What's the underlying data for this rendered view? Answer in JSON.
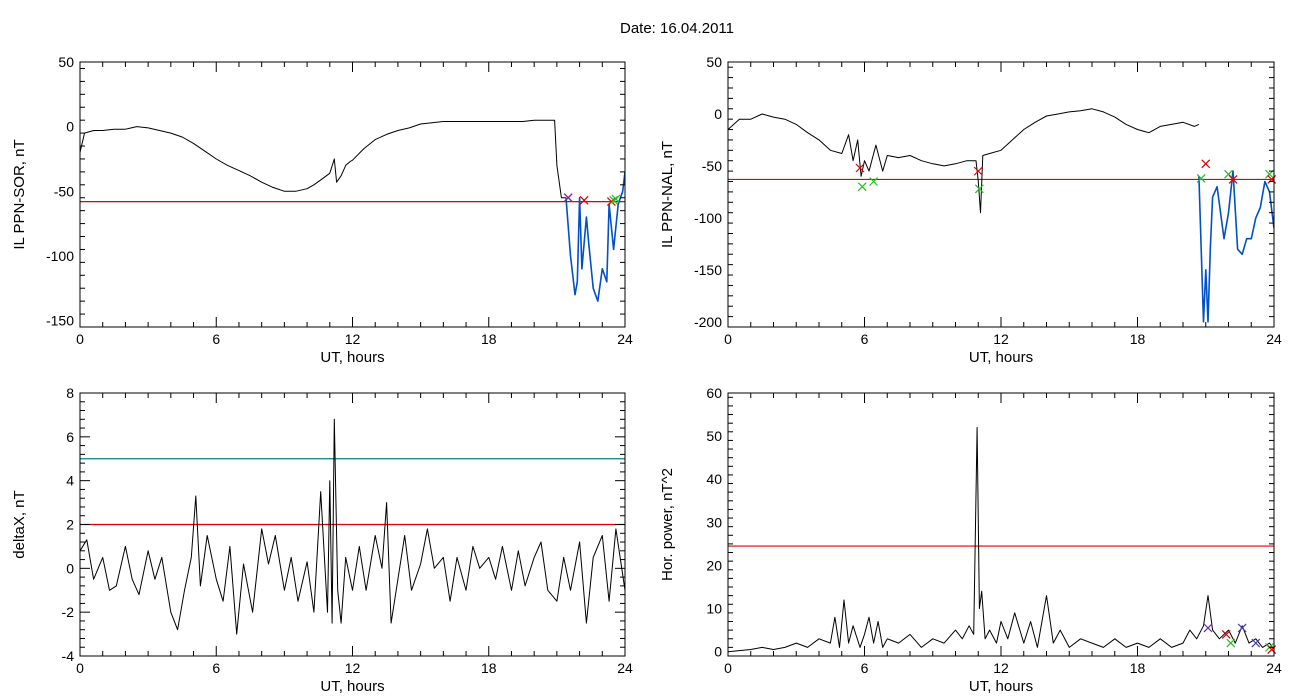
{
  "header": {
    "date_label": "Date:  16.04.2011"
  },
  "chart_data": [
    {
      "id": "p1",
      "type": "line",
      "title": "",
      "xlabel": "UT, hours",
      "ylabel": "IL PPN-SOR, nT",
      "xlim": [
        0,
        24
      ],
      "ylim": [
        -155,
        50
      ],
      "xticks": [
        0,
        6,
        12,
        18,
        24
      ],
      "yticks": [
        -150,
        -100,
        -50,
        0,
        50
      ],
      "thresholds": [
        {
          "y": -58,
          "color": "#e00000"
        }
      ],
      "series": [
        {
          "color": "#000000",
          "x": [
            0,
            0.2,
            0.6,
            1,
            1.5,
            2,
            2.5,
            3,
            3.5,
            4,
            4.5,
            5,
            5.5,
            6,
            6.5,
            7,
            7.5,
            8,
            8.5,
            9,
            9.5,
            10,
            10.3,
            10.7,
            11,
            11.2,
            11.3,
            11.5,
            11.7,
            11.9,
            12,
            12.5,
            13,
            13.5,
            14,
            14.5,
            15,
            15.5,
            16,
            16.5,
            17,
            17.5,
            18,
            18.5,
            19,
            19.5,
            20,
            20.5,
            20.9,
            21.0,
            21.2,
            21.4
          ],
          "y": [
            -20,
            -5,
            -3,
            -3,
            -2,
            -2,
            0,
            -1,
            -3,
            -5,
            -8,
            -13,
            -19,
            -25,
            -30,
            -34,
            -38,
            -43,
            -47,
            -50,
            -50,
            -48,
            -45,
            -40,
            -36,
            -25,
            -43,
            -38,
            -30,
            -27,
            -26,
            -17,
            -10,
            -6,
            -3,
            -1,
            2,
            3,
            4,
            4,
            4,
            4,
            4,
            4,
            4,
            4,
            5,
            5,
            5,
            -30,
            -55,
            -55
          ]
        },
        {
          "color": "#0050c8",
          "x": [
            21.4,
            21.6,
            21.8,
            21.9,
            22.0,
            22.1,
            22.3,
            22.4,
            22.6,
            22.8,
            23.0,
            23.2,
            23.3,
            23.5,
            23.7,
            23.9,
            24.0
          ],
          "y": [
            -55,
            -100,
            -130,
            -120,
            -55,
            -110,
            -70,
            -90,
            -125,
            -135,
            -110,
            -120,
            -60,
            -95,
            -60,
            -50,
            -35
          ]
        }
      ],
      "markers": [
        {
          "x": 21.5,
          "y": -55,
          "color": "#e00000"
        },
        {
          "x": 21.5,
          "y": -55,
          "color": "#7030a0"
        },
        {
          "x": 22.2,
          "y": -57,
          "color": "#e00000"
        },
        {
          "x": 23.4,
          "y": -58,
          "color": "#e00000"
        },
        {
          "x": 23.5,
          "y": -57,
          "color": "#20c020"
        },
        {
          "x": 23.6,
          "y": -56,
          "color": "#20c020"
        }
      ]
    },
    {
      "id": "p2",
      "type": "line",
      "title": "",
      "xlabel": "UT, hours",
      "ylabel": "IL PPN-NAL, nT",
      "xlim": [
        0,
        24
      ],
      "ylim": [
        -205,
        50
      ],
      "xticks": [
        0,
        6,
        12,
        18,
        24
      ],
      "yticks": [
        -200,
        -150,
        -100,
        -50,
        0,
        50
      ],
      "thresholds": [
        {
          "y": -63,
          "color": "#e00000"
        }
      ],
      "series": [
        {
          "color": "#000000",
          "x": [
            0,
            0.5,
            1,
            1.5,
            2,
            2.5,
            3,
            3.5,
            4,
            4.5,
            5,
            5.3,
            5.5,
            5.7,
            5.85,
            6,
            6.2,
            6.5,
            6.8,
            7,
            7.5,
            8,
            8.5,
            9,
            9.5,
            10,
            10.5,
            10.9,
            11.0,
            11.1,
            11.2,
            11.5,
            12,
            12.5,
            13,
            13.5,
            14,
            14.5,
            15,
            15.5,
            16,
            16.5,
            17,
            17.5,
            18,
            18.5,
            19,
            19.5,
            20,
            20.5,
            20.7
          ],
          "y": [
            -15,
            -5,
            -5,
            0,
            -3,
            -5,
            -10,
            -18,
            -25,
            -35,
            -38,
            -20,
            -45,
            -25,
            -60,
            -45,
            -55,
            -30,
            -55,
            -40,
            -42,
            -40,
            -45,
            -48,
            -50,
            -48,
            -45,
            -45,
            -65,
            -95,
            -40,
            -38,
            -35,
            -25,
            -15,
            -8,
            -2,
            0,
            2,
            3,
            5,
            2,
            -3,
            -10,
            -15,
            -18,
            -12,
            -10,
            -8,
            -12,
            -10
          ]
        },
        {
          "color": "#0050c8",
          "x": [
            20.7,
            20.9,
            21.0,
            21.1,
            21.2,
            21.3,
            21.5,
            21.8,
            22.0,
            22.2,
            22.4,
            22.6,
            22.8,
            23.0,
            23.2,
            23.4,
            23.6,
            23.8,
            24.0
          ],
          "y": [
            -60,
            -200,
            -150,
            -200,
            -130,
            -80,
            -70,
            -120,
            -95,
            -55,
            -130,
            -135,
            -120,
            -120,
            -100,
            -90,
            -65,
            -75,
            -110
          ]
        }
      ],
      "markers": [
        {
          "x": 5.8,
          "y": -52,
          "color": "#e00000"
        },
        {
          "x": 5.9,
          "y": -70,
          "color": "#20c020"
        },
        {
          "x": 6.4,
          "y": -65,
          "color": "#20c020"
        },
        {
          "x": 11.0,
          "y": -55,
          "color": "#e00000"
        },
        {
          "x": 11.05,
          "y": -72,
          "color": "#20c020"
        },
        {
          "x": 20.8,
          "y": -62,
          "color": "#20c020"
        },
        {
          "x": 21.0,
          "y": -48,
          "color": "#e00000"
        },
        {
          "x": 22.0,
          "y": -58,
          "color": "#20c020"
        },
        {
          "x": 22.2,
          "y": -63,
          "color": "#e00000"
        },
        {
          "x": 23.8,
          "y": -58,
          "color": "#20c020"
        },
        {
          "x": 23.9,
          "y": -63,
          "color": "#e00000"
        }
      ]
    },
    {
      "id": "p3",
      "type": "line",
      "title": "",
      "xlabel": "UT, hours",
      "ylabel": "deltaX, nT",
      "xlim": [
        0,
        24
      ],
      "ylim": [
        -4,
        8
      ],
      "xticks": [
        0,
        6,
        12,
        18,
        24
      ],
      "yticks": [
        -4,
        -2,
        0,
        2,
        4,
        6,
        8
      ],
      "thresholds": [
        {
          "y": 5,
          "color": "#008080"
        },
        {
          "y": 2,
          "color": "#e00000"
        }
      ],
      "series": [
        {
          "color": "#000000",
          "x": [
            0,
            0.3,
            0.6,
            1,
            1.3,
            1.6,
            2,
            2.3,
            2.6,
            3,
            3.3,
            3.6,
            4,
            4.3,
            4.6,
            4.9,
            5.1,
            5.3,
            5.6,
            6,
            6.3,
            6.6,
            6.9,
            7.2,
            7.6,
            8,
            8.3,
            8.6,
            9,
            9.3,
            9.6,
            10,
            10.3,
            10.6,
            10.9,
            11.0,
            11.1,
            11.2,
            11.35,
            11.5,
            11.7,
            12,
            12.3,
            12.6,
            13,
            13.3,
            13.5,
            13.7,
            14,
            14.3,
            14.6,
            15,
            15.3,
            15.6,
            16,
            16.3,
            16.6,
            17,
            17.3,
            17.6,
            18,
            18.3,
            18.6,
            19,
            19.3,
            19.6,
            20,
            20.3,
            20.6,
            21,
            21.3,
            21.6,
            22,
            22.3,
            22.6,
            23,
            23.3,
            23.6,
            24
          ],
          "y": [
            0.8,
            1.3,
            -0.5,
            0.5,
            -1,
            -0.8,
            1,
            -0.5,
            -1.2,
            0.8,
            -0.5,
            0.5,
            -2,
            -2.8,
            -1,
            0.5,
            3.3,
            -0.8,
            1.5,
            -0.5,
            -1.5,
            1,
            -3,
            0.2,
            -2,
            1.8,
            0.2,
            1.5,
            -1,
            0.5,
            -1.5,
            0.3,
            -2,
            3.5,
            -2,
            4,
            -2.5,
            6.8,
            -1,
            -2.5,
            0.5,
            -1,
            1,
            -1,
            1.5,
            0,
            3,
            -2.5,
            -0.5,
            1.5,
            -1,
            0.2,
            1.8,
            0,
            0.5,
            -1.5,
            0.5,
            -1,
            1,
            0,
            0.5,
            -0.5,
            1,
            -1,
            0.8,
            -0.8,
            0.5,
            1.2,
            -1,
            -1.5,
            0.5,
            -1,
            1.2,
            -2.5,
            0.5,
            1.5,
            -1.5,
            1.8,
            -1
          ]
        }
      ],
      "markers": []
    },
    {
      "id": "p4",
      "type": "line",
      "title": "",
      "xlabel": "UT, hours",
      "ylabel": "Hor. power, nT^2",
      "xlim": [
        0,
        24
      ],
      "ylim": [
        -1,
        60
      ],
      "xticks": [
        0,
        6,
        12,
        18,
        24
      ],
      "yticks": [
        0,
        10,
        20,
        30,
        40,
        50,
        60
      ],
      "thresholds": [
        {
          "y": 24.5,
          "color": "#e00000"
        }
      ],
      "series": [
        {
          "color": "#000000",
          "x": [
            0,
            1,
            1.5,
            2,
            2.5,
            3,
            3.5,
            4,
            4.5,
            4.7,
            4.9,
            5.1,
            5.3,
            5.5,
            5.8,
            6,
            6.2,
            6.4,
            6.6,
            6.8,
            7,
            7.5,
            8,
            8.5,
            9,
            9.5,
            10,
            10.3,
            10.6,
            10.8,
            10.95,
            11.05,
            11.15,
            11.3,
            11.5,
            11.8,
            12,
            12.3,
            12.6,
            13,
            13.3,
            13.6,
            14,
            14.3,
            14.6,
            15,
            15.5,
            16,
            16.5,
            17,
            17.5,
            18,
            18.5,
            19,
            19.5,
            20,
            20.3,
            20.6,
            20.9,
            21.1,
            21.3,
            21.6,
            22,
            22.3,
            22.6,
            22.9,
            23.2,
            23.5,
            23.8,
            24
          ],
          "y": [
            0,
            0.5,
            1,
            0.5,
            1,
            2,
            1,
            3,
            2,
            8,
            1,
            12,
            2,
            6,
            1,
            4,
            8,
            2,
            7,
            1,
            3,
            2,
            4,
            1,
            3,
            2,
            5,
            3,
            6,
            4,
            52,
            10,
            14,
            3,
            5,
            2,
            7,
            3,
            9,
            2,
            7,
            1,
            13,
            2,
            5,
            1,
            3,
            2,
            1,
            3,
            1,
            2,
            1,
            3,
            1,
            2,
            5,
            3,
            6,
            13,
            5,
            3,
            5,
            2,
            6,
            2,
            3,
            1,
            2,
            0.5
          ]
        }
      ],
      "markers": [
        {
          "x": 21.1,
          "y": 5.5,
          "color": "#7030a0"
        },
        {
          "x": 21.9,
          "y": 4,
          "color": "#e00000"
        },
        {
          "x": 22.1,
          "y": 2,
          "color": "#20c020"
        },
        {
          "x": 22.6,
          "y": 5.5,
          "color": "#4040c0"
        },
        {
          "x": 23.2,
          "y": 2,
          "color": "#4040c0"
        },
        {
          "x": 23.8,
          "y": 1,
          "color": "#20c020"
        },
        {
          "x": 23.9,
          "y": 0.5,
          "color": "#e00000"
        }
      ]
    }
  ]
}
